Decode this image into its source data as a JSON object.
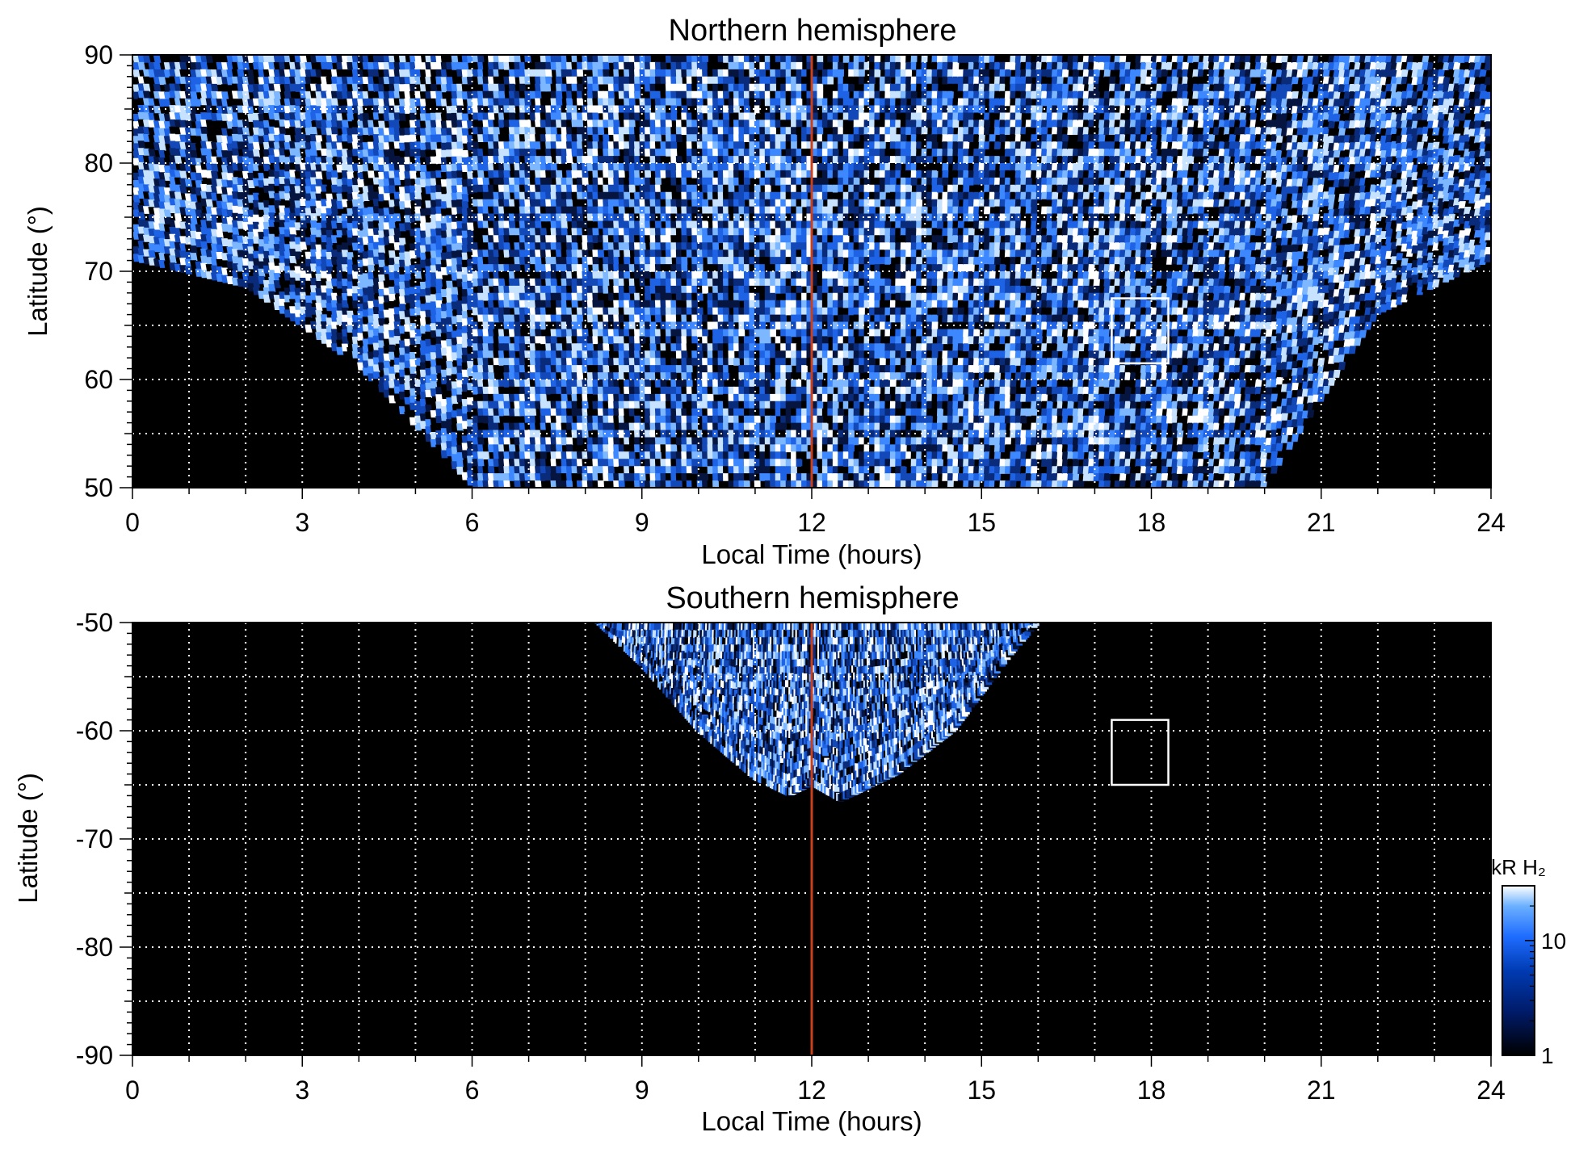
{
  "chart_data": [
    {
      "type": "heatmap",
      "title": "Northern hemisphere",
      "xlabel": "Local Time (hours)",
      "ylabel": "Latitude (°)",
      "xlim": [
        0,
        24
      ],
      "ylim": [
        50,
        90
      ],
      "x_ticks": [
        0,
        3,
        6,
        9,
        12,
        15,
        18,
        21,
        24
      ],
      "y_ticks": [
        50,
        60,
        70,
        80,
        90
      ],
      "x_grid_step": 1,
      "y_grid_step": 5,
      "grid": true,
      "reference_line": {
        "x": 12,
        "color": "#c8401c"
      },
      "box": {
        "x": [
          17.3,
          18.3
        ],
        "y": [
          61.5,
          67.5
        ]
      },
      "coverage": "emission over a bowl-shaped region: full longitude coverage above ~70°, extending down to 50° between ~4 and ~20 LT",
      "coverage_lower_bound": {
        "lt": [
          0,
          2,
          4,
          6,
          8,
          10,
          12,
          14,
          16,
          18,
          20,
          22,
          24
        ],
        "lat": [
          71,
          68.5,
          61,
          50,
          50,
          50,
          50,
          50,
          50,
          50,
          50,
          66,
          71
        ]
      }
    },
    {
      "type": "heatmap",
      "title": "Southern hemisphere",
      "xlabel": "Local Time (hours)",
      "ylabel": "Latitude (°)",
      "xlim": [
        0,
        24
      ],
      "ylim": [
        -90,
        -50
      ],
      "x_ticks": [
        0,
        3,
        6,
        9,
        12,
        15,
        18,
        21,
        24
      ],
      "y_ticks": [
        -50,
        -60,
        -70,
        -80,
        -90
      ],
      "x_grid_step": 1,
      "y_grid_step": 5,
      "grid": true,
      "reference_line": {
        "x": 12,
        "color": "#c8401c"
      },
      "box": {
        "x": [
          17.3,
          18.3
        ],
        "y": [
          -65,
          -59
        ]
      },
      "coverage": "emission only in an arc near the dayside, ~8.2–16 LT, down to about -67°",
      "coverage_lower_bound": {
        "lt": [
          8.2,
          9,
          10,
          11,
          11.6,
          12,
          12.5,
          13.5,
          14.5,
          15.5,
          16
        ],
        "lat": [
          -50,
          -54,
          -60,
          -64.5,
          -66,
          -65,
          -66.5,
          -64,
          -60,
          -53,
          -50
        ]
      }
    }
  ],
  "colorbar": {
    "label": "kR H₂",
    "scale": "log",
    "range": [
      1,
      30
    ],
    "tick_values": [
      1,
      10
    ],
    "tick_labels": [
      "1",
      "10"
    ],
    "colormap": [
      "#000000",
      "#001a66",
      "#003bb3",
      "#1e6cff",
      "#6bb0ff",
      "#ffffff"
    ]
  },
  "colors": {
    "background": "#000000",
    "grid": "#ffffff",
    "reference_line": "#c8401c",
    "box": "#ffffff"
  }
}
